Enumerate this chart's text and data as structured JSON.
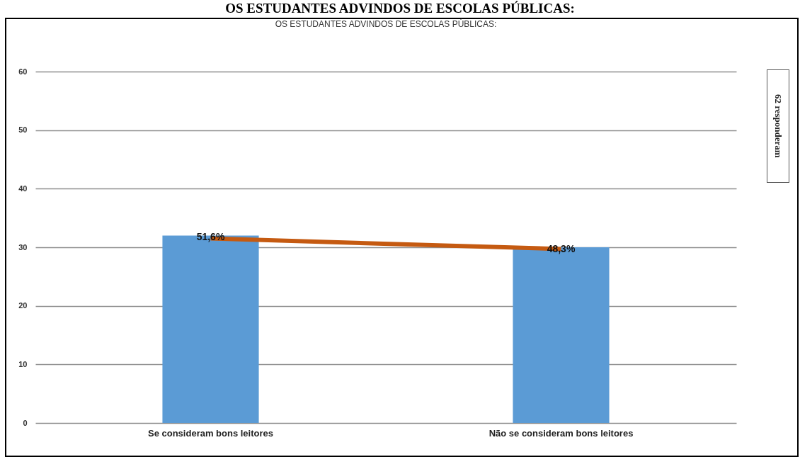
{
  "chart_data": {
    "type": "bar",
    "title": "OS ESTUDANTES ADVINDOS DE ESCOLAS PÚBLICAS:",
    "subtitle": "OS ESTUDANTES ADVINDOS DE ESCOLAS PÚBLICAS:",
    "annotations": [
      "62 responderam",
      {
        "text": "51,6%",
        "x": "Se consideram bons leitores",
        "y": 32
      },
      {
        "text": "48,3%",
        "x": "Não se consideram bons leitores",
        "y": 30
      }
    ],
    "categories": [
      "Se consideram bons leitores",
      "Não se consideram bons leitores"
    ],
    "series": [
      {
        "color": "#5b9bd5",
        "values": [
          32,
          30
        ]
      },
      {
        "type": "line",
        "color": "#c55a11",
        "values": [
          31.5,
          29.7
        ]
      }
    ],
    "ylim": [
      0,
      60
    ],
    "yticks": [
      0,
      10,
      20,
      30,
      40,
      50,
      60
    ],
    "grid": "y"
  }
}
